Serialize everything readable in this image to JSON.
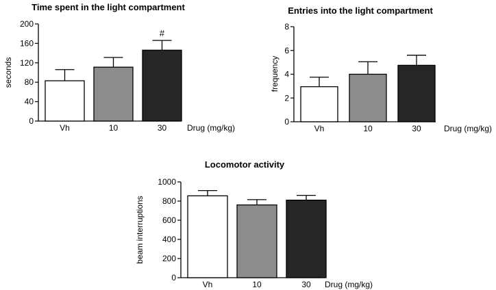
{
  "chart_data": [
    {
      "type": "bar",
      "title": "Time spent in the light compartment",
      "xlabel": "Drug (mg/kg)",
      "ylabel": "seconds",
      "categories": [
        "Vh",
        "10",
        "30"
      ],
      "values": [
        83,
        111,
        146
      ],
      "errors": [
        23,
        20,
        20
      ],
      "annotations": [
        "",
        "",
        "#"
      ],
      "ylim": [
        0,
        200
      ],
      "yticks": [
        0,
        40,
        80,
        120,
        160,
        200
      ],
      "bar_colors": [
        "#ffffff",
        "#8c8c8c",
        "#262626"
      ],
      "grid": false,
      "legend": "none"
    },
    {
      "type": "bar",
      "title": "Entries into  the light compartment",
      "xlabel": "Drug (mg/kg)",
      "ylabel": "frequency",
      "categories": [
        "Vh",
        "10",
        "30"
      ],
      "values": [
        2.95,
        4.0,
        4.75
      ],
      "errors": [
        0.8,
        1.05,
        0.85
      ],
      "annotations": [
        "",
        "",
        ""
      ],
      "ylim": [
        0,
        8
      ],
      "yticks": [
        0,
        2,
        4,
        6,
        8
      ],
      "bar_colors": [
        "#ffffff",
        "#8c8c8c",
        "#262626"
      ],
      "grid": false,
      "legend": "none"
    },
    {
      "type": "bar",
      "title": "Locomotor activity",
      "xlabel": "Drug (mg/kg)",
      "ylabel": "beam interruptions",
      "categories": [
        "Vh",
        "10",
        "30"
      ],
      "values": [
        855,
        760,
        810
      ],
      "errors": [
        55,
        55,
        50
      ],
      "annotations": [
        "",
        "",
        ""
      ],
      "ylim": [
        0,
        1000
      ],
      "yticks": [
        0,
        200,
        400,
        600,
        800,
        1000
      ],
      "bar_colors": [
        "#ffffff",
        "#8c8c8c",
        "#262626"
      ],
      "grid": false,
      "legend": "none"
    }
  ]
}
